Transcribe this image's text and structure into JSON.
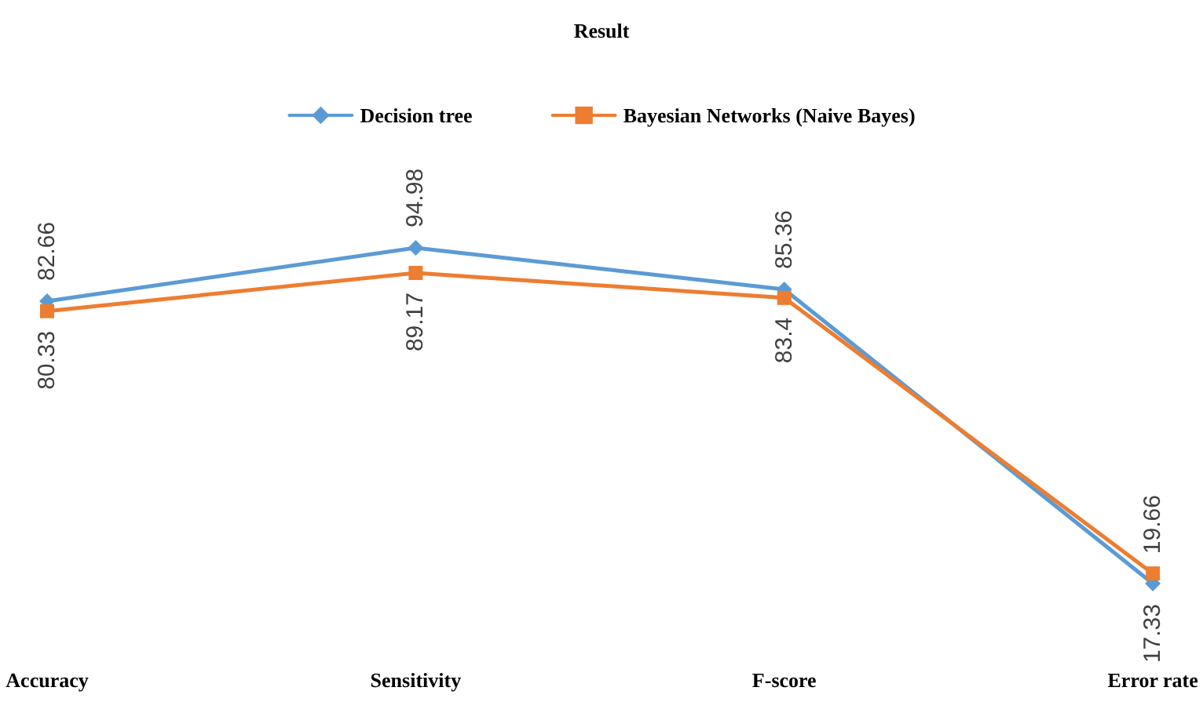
{
  "chart_data": {
    "type": "line",
    "title": "Result",
    "categories": [
      "Accuracy",
      "Sensitivity",
      "F-score",
      "Error rate"
    ],
    "series": [
      {
        "name": "Decision tree",
        "color": "#5b9bd5",
        "marker": "diamond",
        "values": [
          82.66,
          94.98,
          85.36,
          17.33
        ]
      },
      {
        "name": "Bayesian Networks (Naive Bayes)",
        "color": "#ed7d31",
        "marker": "square",
        "values": [
          80.33,
          89.17,
          83.4,
          19.66
        ]
      }
    ],
    "data_labels": true,
    "legend": "top",
    "grid": false
  }
}
